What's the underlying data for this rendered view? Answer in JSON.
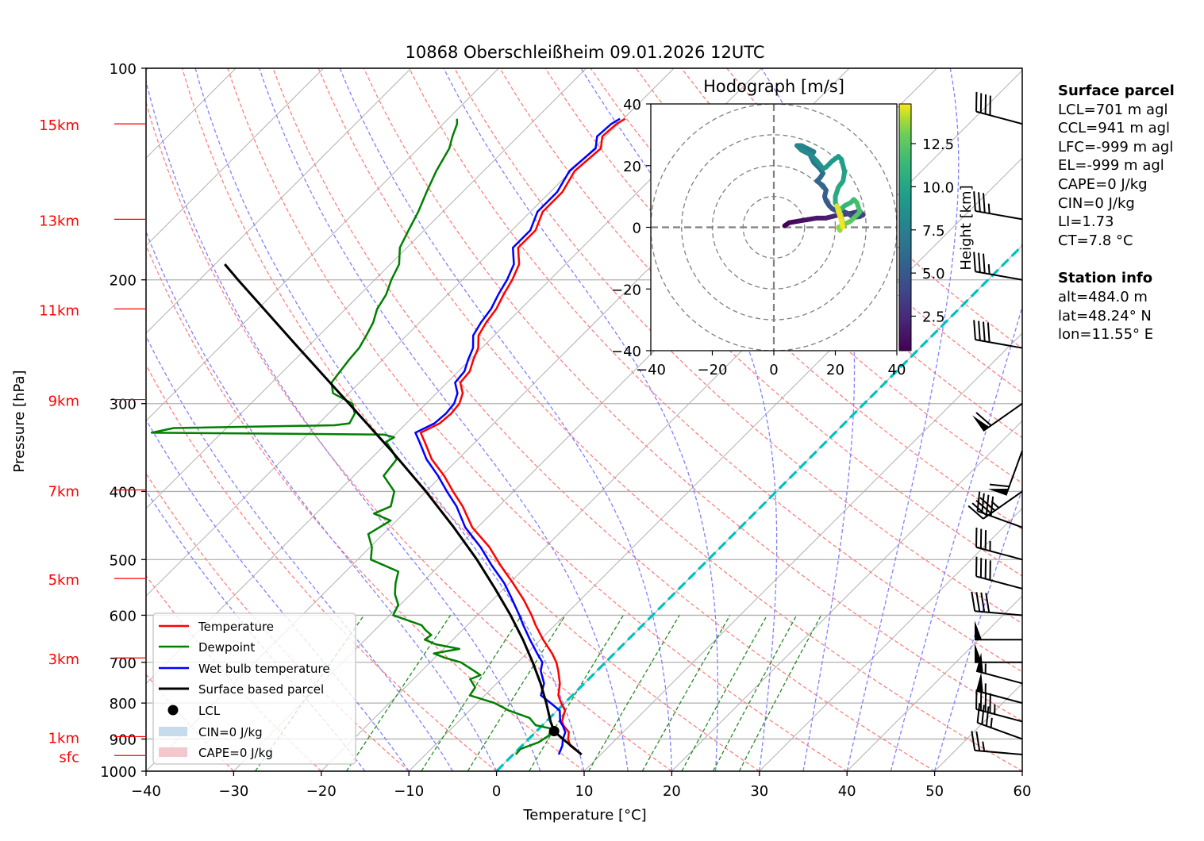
{
  "chart_data": {
    "type": "line",
    "title": "10868 Oberschleißheim 09.01.2026 12UTC",
    "xlabel": "Temperature [°C]",
    "ylabel": "Pressure [hPa]",
    "xlim": [
      -40,
      60
    ],
    "ylim": [
      1000,
      100
    ],
    "x_ticks": [
      "−40",
      "−30",
      "−20",
      "−10",
      "0",
      "10",
      "20",
      "30",
      "40",
      "50",
      "60"
    ],
    "x_tick_values": [
      -40,
      -30,
      -20,
      -10,
      0,
      10,
      20,
      30,
      40,
      50,
      60
    ],
    "y_ticks": [
      "100",
      "200",
      "300",
      "400",
      "500",
      "600",
      "700",
      "800",
      "900",
      "1000"
    ],
    "y_tick_values": [
      100,
      200,
      300,
      400,
      500,
      600,
      700,
      800,
      900,
      1000
    ],
    "height_labels": [
      {
        "label": "15km",
        "p": 120
      },
      {
        "label": "13km",
        "p": 164
      },
      {
        "label": "11km",
        "p": 220
      },
      {
        "label": "9km",
        "p": 296
      },
      {
        "label": "7km",
        "p": 398
      },
      {
        "label": "5km",
        "p": 532
      },
      {
        "label": "3km",
        "p": 690
      },
      {
        "label": "1km",
        "p": 893
      },
      {
        "label": "sfc",
        "p": 950
      }
    ],
    "legend": {
      "position": "lower-left",
      "entries": [
        "Temperature",
        "Dewpoint",
        "Wet bulb temperature",
        "Surface based parcel",
        "LCL",
        "CIN=0 J/kg",
        "CAPE=0 J/kg"
      ]
    },
    "series": [
      {
        "name": "Temperature",
        "color": "#ff0000",
        "p": [
          947,
          920,
          900,
          880,
          862,
          850,
          820,
          800,
          780,
          750,
          720,
          700,
          680,
          650,
          620,
          600,
          570,
          540,
          510,
          480,
          450,
          420,
          400,
          380,
          360,
          340,
          330,
          320,
          310,
          300,
          290,
          280,
          270,
          260,
          250,
          240,
          230,
          220,
          210,
          200,
          190,
          180,
          170,
          160,
          150,
          140,
          130,
          125,
          120,
          118
        ],
        "t": [
          7.8,
          5.5,
          4.5,
          3.8,
          2.5,
          1.8,
          0.9,
          -0.4,
          -1.6,
          -2.8,
          -4.4,
          -5.6,
          -7.1,
          -9.7,
          -12.2,
          -13.8,
          -16.5,
          -19.6,
          -23.0,
          -26.4,
          -30.6,
          -34.1,
          -36.9,
          -39.7,
          -43.0,
          -45.8,
          -47.3,
          -46.2,
          -46.0,
          -46.2,
          -47.0,
          -48.5,
          -48.7,
          -49.6,
          -50.4,
          -51.8,
          -52.4,
          -52.8,
          -53.6,
          -54.3,
          -55.3,
          -57.3,
          -57.3,
          -58.6,
          -58.6,
          -59.6,
          -59.2,
          -60.4,
          -60.2,
          -59.8
        ]
      },
      {
        "name": "Dewpoint",
        "color": "#008000",
        "p": [
          947,
          930,
          910,
          890,
          870,
          860,
          840,
          820,
          800,
          780,
          760,
          740,
          730,
          720,
          700,
          690,
          680,
          670,
          660,
          650,
          640,
          630,
          620,
          600,
          580,
          560,
          540,
          520,
          500,
          480,
          460,
          440,
          430,
          420,
          400,
          380,
          360,
          350,
          340,
          335,
          332,
          330,
          325,
          322,
          320,
          310,
          300,
          290,
          280,
          270,
          260,
          250,
          240,
          230,
          220,
          210,
          200,
          190,
          180,
          170,
          160,
          150,
          140,
          130,
          125,
          120,
          118
        ],
        "t": [
          0.3,
          0.2,
          1.5,
          1.9,
          1.4,
          -0.8,
          -2.3,
          -5.5,
          -8.0,
          -11.7,
          -12.0,
          -13.5,
          -12.8,
          -14.0,
          -16.5,
          -18.8,
          -20.6,
          -18.2,
          -21.4,
          -23.2,
          -23.0,
          -24.2,
          -25.2,
          -29.6,
          -30.2,
          -31.8,
          -33.0,
          -34.0,
          -38.5,
          -39.8,
          -41.7,
          -40.7,
          -43.4,
          -42.3,
          -43.6,
          -46.6,
          -47.0,
          -48.5,
          -50.2,
          -49.8,
          -51.3,
          -78.0,
          -76.0,
          -58.0,
          -56.5,
          -57.0,
          -58.4,
          -61.8,
          -63.2,
          -63.5,
          -63.8,
          -64.0,
          -64.6,
          -65.3,
          -66.4,
          -67.0,
          -68.1,
          -69.0,
          -70.8,
          -71.8,
          -72.8,
          -74.1,
          -75.4,
          -76.5,
          -77.5,
          -78.4,
          -79.0
        ]
      },
      {
        "name": "Wet bulb temperature",
        "color": "#0000ff",
        "p": [
          947,
          920,
          900,
          880,
          862,
          850,
          820,
          800,
          780,
          750,
          720,
          700,
          680,
          650,
          620,
          600,
          570,
          540,
          510,
          480,
          450,
          420,
          400,
          380,
          360,
          340,
          330,
          320,
          310,
          300,
          290,
          280,
          270,
          260,
          250,
          240,
          230,
          220,
          210,
          200,
          190,
          180,
          170,
          160,
          150,
          140,
          130,
          125,
          120,
          118
        ],
        "t": [
          5.2,
          4.6,
          3.9,
          3.4,
          2.4,
          1.6,
          0.3,
          -1.6,
          -3.6,
          -4.6,
          -6.4,
          -7.2,
          -8.8,
          -11.2,
          -13.6,
          -15.2,
          -17.8,
          -20.6,
          -24.0,
          -27.4,
          -31.4,
          -34.8,
          -37.6,
          -40.4,
          -43.6,
          -46.4,
          -47.9,
          -46.8,
          -46.6,
          -46.8,
          -47.6,
          -49.1,
          -49.3,
          -50.2,
          -51.0,
          -52.4,
          -53.0,
          -53.4,
          -54.2,
          -54.9,
          -55.9,
          -57.9,
          -57.9,
          -59.2,
          -59.2,
          -60.2,
          -59.8,
          -61.0,
          -60.8,
          -60.4
        ]
      },
      {
        "name": "Surface based parcel",
        "color": "#000000",
        "p": [
          947,
          920,
          900,
          877,
          850,
          800,
          750,
          700,
          650,
          600,
          550,
          500,
          450,
          400,
          350,
          300,
          250,
          200,
          190
        ],
        "t": [
          7.8,
          5.6,
          3.9,
          2.0,
          0.5,
          -2.1,
          -5.0,
          -8.3,
          -12.0,
          -16.2,
          -21.0,
          -26.4,
          -32.7,
          -40.0,
          -48.6,
          -58.8,
          -70.9,
          -85.6,
          -88.9
        ]
      }
    ],
    "lcl": {
      "p": 877,
      "t": 2.0
    },
    "freezing_level_line": {
      "color": "#00c0c0",
      "t": 0
    },
    "isotherms": {
      "color": "#b0b0b0",
      "step": 10
    },
    "dry_adiabats": {
      "color": "#ff8080",
      "theta": [
        -30,
        -20,
        -10,
        0,
        10,
        20,
        30,
        40,
        50,
        60,
        70,
        80,
        90,
        100,
        110,
        120,
        130,
        140,
        150
      ]
    },
    "moist_adiabats": {
      "color": "#8080ff",
      "theta_w": [
        -15,
        -10,
        -5,
        0,
        5,
        10,
        15,
        20,
        25,
        30,
        35,
        40,
        45,
        50
      ]
    },
    "mixing_ratio_lines": {
      "color": "#228b22",
      "w": [
        0.4,
        1,
        2,
        3,
        5,
        8,
        12,
        16,
        20,
        24
      ]
    },
    "wind_barbs": [
      {
        "p": 120,
        "dir": 285,
        "spd_kt": 40
      },
      {
        "p": 164,
        "dir": 280,
        "spd_kt": 35
      },
      {
        "p": 200,
        "dir": 280,
        "spd_kt": 35
      },
      {
        "p": 250,
        "dir": 280,
        "spd_kt": 40
      },
      {
        "p": 300,
        "dir": 235,
        "spd_kt": 60
      },
      {
        "p": 350,
        "dir": 200,
        "spd_kt": 60
      },
      {
        "p": 400,
        "dir": 235,
        "spd_kt": 45
      },
      {
        "p": 450,
        "dir": 290,
        "spd_kt": 40
      },
      {
        "p": 500,
        "dir": 285,
        "spd_kt": 35
      },
      {
        "p": 550,
        "dir": 285,
        "spd_kt": 40
      },
      {
        "p": 600,
        "dir": 275,
        "spd_kt": 40
      },
      {
        "p": 650,
        "dir": 270,
        "spd_kt": 50
      },
      {
        "p": 700,
        "dir": 270,
        "spd_kt": 50
      },
      {
        "p": 750,
        "dir": 285,
        "spd_kt": 55
      },
      {
        "p": 800,
        "dir": 285,
        "spd_kt": 55
      },
      {
        "p": 850,
        "dir": 285,
        "spd_kt": 45
      },
      {
        "p": 900,
        "dir": 290,
        "spd_kt": 35
      },
      {
        "p": 947,
        "dir": 275,
        "spd_kt": 25
      }
    ],
    "hodograph": {
      "title": "Hodograph [m/s]",
      "xlim": [
        -40,
        40
      ],
      "ylim": [
        -40,
        40
      ],
      "x_ticks": [
        "−40",
        "−20",
        "0",
        "20",
        "40"
      ],
      "y_ticks": [
        "40",
        "20",
        "0",
        "−20",
        "−40"
      ],
      "tick_values": [
        -40,
        -20,
        0,
        20,
        40
      ],
      "rings": [
        10,
        20,
        30,
        40
      ],
      "colorbar": {
        "label": "Height [km]",
        "ticks": [
          "2.5",
          "5.0",
          "7.5",
          "10.0",
          "12.5"
        ],
        "tick_values": [
          2.5,
          5,
          7.5,
          10,
          12.5
        ],
        "range": [
          0.5,
          14.8
        ],
        "colormap": "viridis"
      },
      "u": [
        3.5,
        5,
        8,
        11,
        14,
        17,
        19,
        21,
        23,
        25,
        27,
        28,
        29,
        28,
        26,
        24,
        22,
        20,
        19,
        18,
        17,
        16.5,
        17,
        16,
        14,
        15,
        16,
        15,
        13,
        12,
        13,
        11,
        10,
        9,
        7.5,
        9,
        12,
        14,
        16,
        17,
        19,
        21,
        22,
        23,
        22.5,
        21,
        20,
        20,
        21,
        22,
        23,
        25,
        26,
        27,
        28,
        27,
        26,
        25,
        24,
        23,
        22,
        21,
        21.5,
        22,
        22.3,
        21.8,
        21,
        20.5,
        21,
        22,
        22.5
      ],
      "v": [
        0.5,
        1.5,
        2,
        2.5,
        3,
        3,
        3.5,
        4,
        4.2,
        4.5,
        5,
        5.2,
        4,
        3.5,
        3.2,
        4.5,
        5.5,
        5.5,
        6,
        7,
        8.5,
        10,
        12,
        13.5,
        15,
        16,
        17.5,
        19,
        21,
        23,
        24.5,
        25.5,
        26,
        26.5,
        26.5,
        25,
        23.5,
        21.5,
        19,
        19.5,
        21.5,
        23,
        22,
        18,
        15,
        13,
        10,
        8,
        6,
        6,
        7,
        8,
        9,
        8,
        5,
        4,
        3,
        2,
        1.5,
        1,
        0.5,
        0,
        -1,
        0.5,
        2,
        4,
        6,
        7,
        5,
        2,
        0
      ],
      "h": [
        0.5,
        0.8,
        1.1,
        1.4,
        1.7,
        2.0,
        2.3,
        2.6,
        2.8,
        3.0,
        3.2,
        3.4,
        3.6,
        3.8,
        4.0,
        4.2,
        4.4,
        4.6,
        4.8,
        5.0,
        5.2,
        5.4,
        5.6,
        5.8,
        6.0,
        6.2,
        6.4,
        6.6,
        6.8,
        7.0,
        7.2,
        7.4,
        7.6,
        7.8,
        8.0,
        8.2,
        8.4,
        8.6,
        8.8,
        9.0,
        9.2,
        9.4,
        9.6,
        9.8,
        10.0,
        10.2,
        10.4,
        10.6,
        10.8,
        11.0,
        11.2,
        11.4,
        11.6,
        11.8,
        12.0,
        12.2,
        12.4,
        12.6,
        12.8,
        13.0,
        13.2,
        13.4,
        13.6,
        13.8,
        14.0,
        14.2,
        14.4,
        14.5,
        14.6,
        14.7,
        14.8
      ]
    }
  },
  "info": {
    "surface_parcel_title": "Surface parcel",
    "lines": [
      "LCL=701 m agl",
      "CCL=941 m agl",
      "LFC=-999 m agl",
      "EL=-999 m agl",
      "CAPE=0 J/kg",
      "CIN=0 J/kg",
      "LI=1.73",
      "CT=7.8 °C"
    ],
    "station_title": "Station info",
    "station_lines": [
      "alt=484.0 m",
      "lat=48.24° N",
      "lon=11.55° E"
    ]
  }
}
